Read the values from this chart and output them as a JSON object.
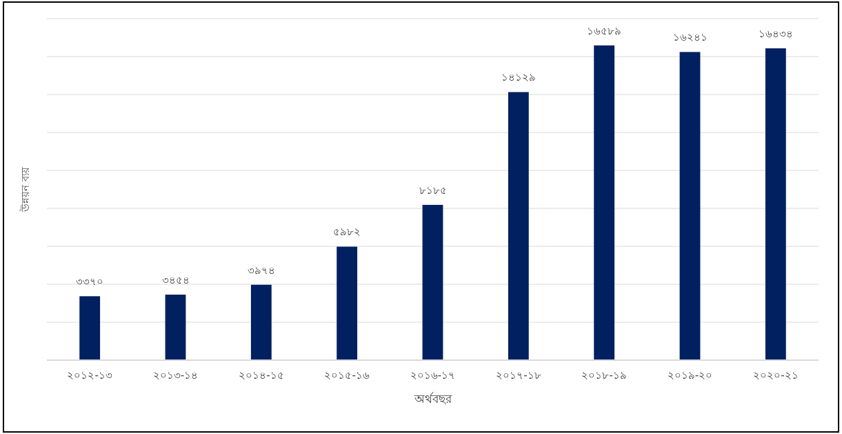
{
  "chart_data": {
    "type": "bar",
    "xlabel": "অর্থবছর",
    "ylabel": "উন্নয়ন ব্যয়",
    "categories": [
      "২০১২-১৩",
      "২০১৩-১৪",
      "২০১৪-১৫",
      "২০১৫-১৬",
      "২০১৬-১৭",
      "২০১৭-১৮",
      "২০১৮-১৯",
      "২০১৯-২০",
      "২০২০-২১"
    ],
    "values": [
      3370,
      3454,
      3974,
      5982,
      8185,
      14129,
      16589,
      16241,
      16434
    ],
    "value_labels": [
      "৩৩৭০",
      "৩৪৫৪",
      "৩৯৭৪",
      "৫৯৮২",
      "৮১৮৫",
      "১৪১২৯",
      "১৬৫৮৯",
      "১৬২৪১",
      "১৬৪৩৪"
    ],
    "color": "#002060",
    "ylim": [
      0,
      18000
    ],
    "yticks": [
      {
        "value": 0,
        "label": null
      },
      {
        "value": 2000,
        "label": null
      },
      {
        "value": 4000,
        "label": null
      },
      {
        "value": 6000,
        "label": null
      },
      {
        "value": 8000,
        "label": null
      },
      {
        "value": 10000,
        "label": null
      },
      {
        "value": 12000,
        "label": null
      },
      {
        "value": 14000,
        "label": null
      },
      {
        "value": 16000,
        "label": null
      },
      {
        "value": 18000,
        "label": null
      }
    ],
    "grid": "y",
    "tick_labels": "x"
  }
}
